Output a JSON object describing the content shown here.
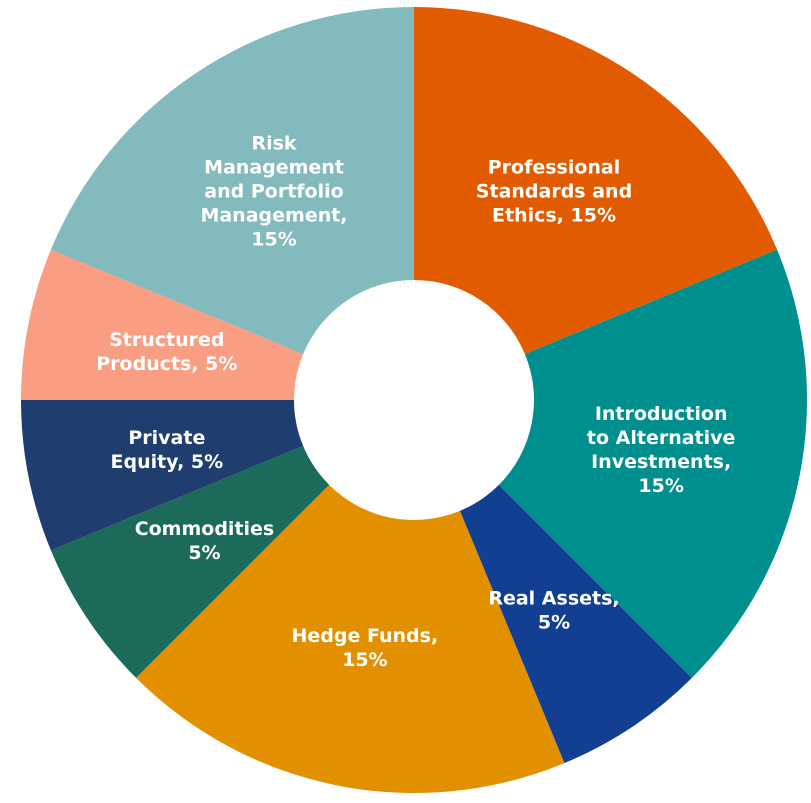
{
  "chart_data": {
    "type": "donut",
    "values": [
      15,
      15,
      5,
      15,
      5,
      5,
      5,
      15
    ],
    "value_labels": [
      "Professional\nStandards and\nEthics, 15%",
      "Introduction\nto Alternative\nInvestments,\n15%",
      "Real Assets,\n5%",
      "Hedge Funds,\n15%",
      "Commodities\n5%",
      "Private\nEquity, 5%",
      "Structured\nProducts, 5%",
      "Risk\nManagement\nand Portfolio\nManagement,\n15%"
    ],
    "colors": [
      "#e35b00",
      "#008f8f",
      "#123f91",
      "#e39000",
      "#1c6a5a",
      "#1f3d6e",
      "#f99d83",
      "#83babd"
    ]
  }
}
